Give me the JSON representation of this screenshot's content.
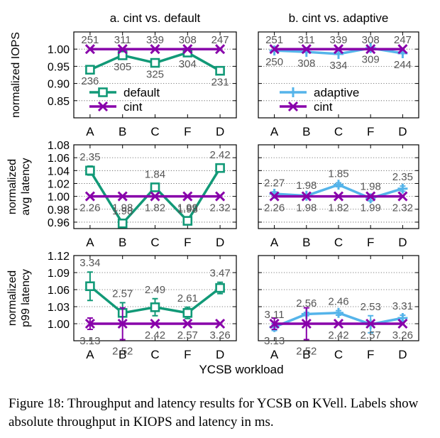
{
  "figure": {
    "caption": "Figure 18: Throughput and latency results for YCSB on KVell. Labels show absolute throughput in KIOPS and latency in ms.",
    "xlabel": "YCSB workload"
  },
  "colors": {
    "cint": "#8800aa",
    "default": "#119977",
    "adaptive": "#55b4ea",
    "label": "#555555"
  },
  "chart_data": [
    {
      "type": "line",
      "panel": "a-iops",
      "title": "a. cint vs. default",
      "ylabel": "normalized IOPS",
      "categories": [
        "A",
        "B",
        "C",
        "F",
        "D"
      ],
      "ylim": [
        0.8,
        1.05
      ],
      "yticks": [
        0.85,
        0.9,
        0.95,
        1.0
      ],
      "ytick_labels": [
        "0.85",
        "0.90",
        "0.95",
        "1.00"
      ],
      "legend": "bottom-center",
      "grid": "dotted",
      "series": [
        {
          "name": "default",
          "key": "default",
          "marker": "square",
          "values": [
            0.94,
            0.982,
            0.96,
            0.99,
            0.937
          ],
          "labels": [
            "236",
            "305",
            "325",
            "304",
            "231"
          ],
          "label_pos": "below"
        },
        {
          "name": "cint",
          "key": "cint",
          "marker": "x",
          "values": [
            1.0,
            1.0,
            1.0,
            1.0,
            1.0
          ],
          "labels": [
            "251",
            "311",
            "339",
            "308",
            "247"
          ],
          "label_pos": "above"
        }
      ]
    },
    {
      "type": "line",
      "panel": "b-iops",
      "title": "b. cint vs. adaptive",
      "categories": [
        "A",
        "B",
        "C",
        "F",
        "D"
      ],
      "ylim": [
        0.8,
        1.05
      ],
      "yticks": [
        0.85,
        0.9,
        0.95,
        1.0
      ],
      "legend": "bottom-center",
      "grid": "dotted",
      "series": [
        {
          "name": "adaptive",
          "key": "adaptive",
          "marker": "plus",
          "values": [
            0.996,
            0.992,
            0.986,
            1.003,
            0.988
          ],
          "labels": [
            "250",
            "308",
            "334",
            "309",
            "244"
          ],
          "label_pos": "below"
        },
        {
          "name": "cint",
          "key": "cint",
          "marker": "x",
          "values": [
            1.0,
            1.0,
            1.0,
            1.0,
            1.0
          ],
          "labels": [
            "251",
            "311",
            "339",
            "308",
            "247"
          ],
          "label_pos": "above"
        }
      ]
    },
    {
      "type": "line",
      "panel": "a-avg",
      "ylabel": [
        "normalized",
        "avg latency"
      ],
      "categories": [
        "A",
        "B",
        "C",
        "F",
        "D"
      ],
      "ylim": [
        0.95,
        1.08
      ],
      "yticks": [
        0.96,
        0.98,
        1.0,
        1.02,
        1.04,
        1.06,
        1.08
      ],
      "ytick_labels": [
        "0.96",
        "0.98",
        "1.00",
        "1.02",
        "1.04",
        "1.06",
        "1.08"
      ],
      "grid": "dotted",
      "series": [
        {
          "name": "default",
          "key": "default",
          "marker": "square",
          "values": [
            1.04,
            0.958,
            1.014,
            0.962,
            1.044
          ],
          "err": [
            0.007,
            0.005,
            0.006,
            0.004,
            0.006
          ],
          "labels": [
            "2.35",
            "1.98",
            "1.84",
            "1.98",
            "2.42"
          ],
          "label_pos": "above"
        },
        {
          "name": "cint",
          "key": "cint",
          "marker": "x",
          "values": [
            1.0,
            1.0,
            1.0,
            1.0,
            1.0
          ],
          "labels": [
            "2.26",
            "1.98",
            "1.82",
            "1.99",
            "2.32"
          ],
          "label_pos": "below"
        }
      ]
    },
    {
      "type": "line",
      "panel": "b-avg",
      "categories": [
        "A",
        "B",
        "C",
        "F",
        "D"
      ],
      "ylim": [
        0.95,
        1.08
      ],
      "yticks": [
        0.96,
        0.98,
        1.0,
        1.02,
        1.04,
        1.06,
        1.08
      ],
      "grid": "dotted",
      "series": [
        {
          "name": "adaptive",
          "key": "adaptive",
          "marker": "plus",
          "values": [
            1.004,
            1.001,
            1.018,
            0.997,
            1.012
          ],
          "err": [
            0.003,
            0.002,
            0.003,
            0.004,
            0.004
          ],
          "labels": [
            "2.27",
            "1.98",
            "1.85",
            "1.98",
            "2.35"
          ],
          "label_pos": "above"
        },
        {
          "name": "cint",
          "key": "cint",
          "marker": "x",
          "values": [
            1.0,
            1.0,
            1.0,
            1.0,
            1.0
          ],
          "labels": [
            "2.26",
            "1.98",
            "1.82",
            "1.99",
            "2.32"
          ],
          "label_pos": "below"
        }
      ]
    },
    {
      "type": "line",
      "panel": "a-p99",
      "ylabel": [
        "normalized",
        "p99 latency"
      ],
      "categories": [
        "A",
        "B",
        "C",
        "F",
        "D"
      ],
      "ylim": [
        0.97,
        1.12
      ],
      "yticks": [
        1.0,
        1.03,
        1.06,
        1.09,
        1.12
      ],
      "ytick_labels": [
        "1.00",
        "1.03",
        "1.06",
        "1.09",
        "1.12"
      ],
      "grid": "dotted",
      "series": [
        {
          "name": "default",
          "key": "default",
          "marker": "square",
          "values": [
            1.066,
            1.019,
            1.029,
            1.019,
            1.063
          ],
          "err": [
            0.025,
            0.018,
            0.015,
            0.01,
            0.01
          ],
          "labels": [
            "3.34",
            "2.57",
            "2.49",
            "2.61",
            "3.47"
          ],
          "label_pos": "above"
        },
        {
          "name": "cint",
          "key": "cint",
          "marker": "x",
          "values": [
            1.0,
            1.0,
            1.0,
            1.0,
            1.0
          ],
          "err": [
            0.01,
            0.028,
            0.0,
            0.0,
            0.0
          ],
          "labels": [
            "3.13",
            "2.52",
            "2.42",
            "2.57",
            "3.26"
          ],
          "label_pos": "below"
        }
      ]
    },
    {
      "type": "line",
      "panel": "b-p99",
      "categories": [
        "A",
        "B",
        "C",
        "F",
        "D"
      ],
      "ylim": [
        0.97,
        1.12
      ],
      "yticks": [
        1.0,
        1.03,
        1.06,
        1.09,
        1.12
      ],
      "grid": "dotted",
      "series": [
        {
          "name": "adaptive",
          "key": "adaptive",
          "marker": "plus",
          "values": [
            0.994,
            1.017,
            1.019,
            0.999,
            1.01
          ],
          "err": [
            0.006,
            0.003,
            0.004,
            0.015,
            0.005
          ],
          "labels": [
            "3.11",
            "2.56",
            "2.46",
            "2.53",
            "3.31"
          ],
          "label_pos": "above"
        },
        {
          "name": "cint",
          "key": "cint",
          "marker": "x",
          "values": [
            1.0,
            1.0,
            1.0,
            1.0,
            1.0
          ],
          "err": [
            0.01,
            0.028,
            0.0,
            0.0,
            0.0
          ],
          "labels": [
            "3.13",
            "2.52",
            "2.42",
            "2.57",
            "3.26"
          ],
          "label_pos": "below"
        }
      ]
    }
  ]
}
